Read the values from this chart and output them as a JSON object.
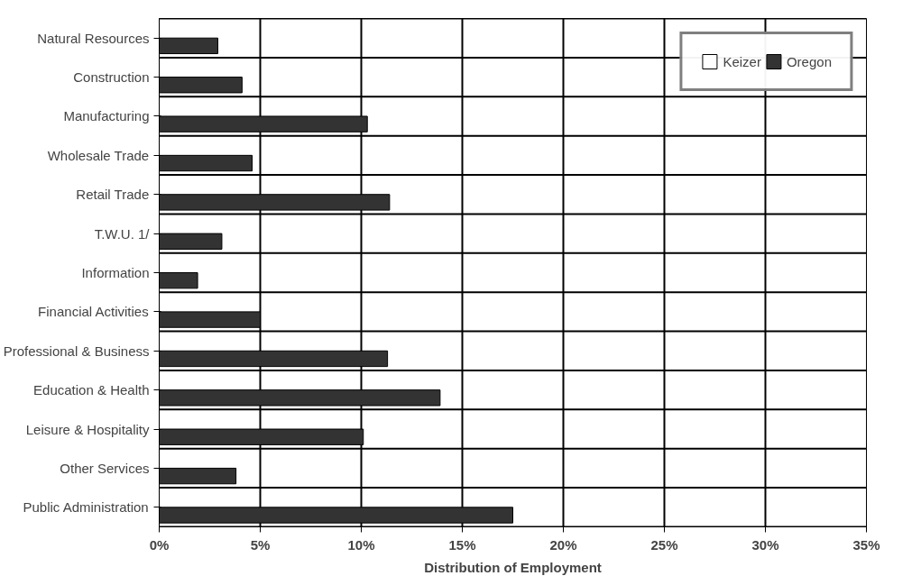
{
  "chart_data": {
    "type": "bar",
    "orientation": "horizontal",
    "xlabel": "Distribution of Employment",
    "categories": [
      "Natural Resources",
      "Construction",
      "Manufacturing",
      "Wholesale Trade",
      "Retail Trade",
      "T.W.U. 1/",
      "Information",
      "Financial Activities",
      "Professional & Business",
      "Education & Health",
      "Leisure & Hospitality",
      "Other Services",
      "Public Administration"
    ],
    "series": [
      {
        "name": "Keizer",
        "color": "#ffffff",
        "values": [
          null,
          null,
          null,
          null,
          null,
          null,
          null,
          null,
          null,
          null,
          null,
          null,
          null
        ]
      },
      {
        "name": "Oregon",
        "color": "#333333",
        "values": [
          2.9,
          4.1,
          10.3,
          4.6,
          11.4,
          3.1,
          1.9,
          5.0,
          11.3,
          13.9,
          10.1,
          3.8,
          17.5
        ]
      }
    ],
    "xlim": [
      0,
      35
    ],
    "xticks": [
      {
        "value": 0,
        "label": "0%"
      },
      {
        "value": 5,
        "label": "5%"
      },
      {
        "value": 10,
        "label": "10%"
      },
      {
        "value": 15,
        "label": "15%"
      },
      {
        "value": 20,
        "label": "20%"
      },
      {
        "value": 25,
        "label": "25%"
      },
      {
        "value": 30,
        "label": "30%"
      },
      {
        "value": 35,
        "label": "35%"
      }
    ],
    "grid": true,
    "legend": "top right"
  }
}
